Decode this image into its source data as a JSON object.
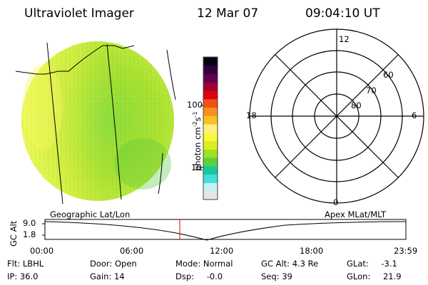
{
  "header": {
    "instrument": "Ultraviolet Imager",
    "date": "12 Mar 07",
    "time": "09:04:10 UT"
  },
  "colorbar": {
    "unit_label": "photon cm",
    "unit_exp1": "-2",
    "unit_s": "s",
    "unit_exp2": "-1",
    "tick_100": "100",
    "tick_10": "10",
    "colors": [
      "#e6e6e6",
      "#c8f0ee",
      "#40e0d8",
      "#18c8a0",
      "#58d040",
      "#a0e020",
      "#d8f020",
      "#f8f840",
      "#fff080",
      "#f8c020",
      "#f89020",
      "#f05010",
      "#e00010",
      "#a00030",
      "#600050",
      "#300040",
      "#080010"
    ]
  },
  "image_panel": {
    "caption": "Geographic Lat/Lon"
  },
  "polar_grid": {
    "caption": "Apex MLat/MLT",
    "mlt_12": "12",
    "mlt_18": "18",
    "mlt_6": "6",
    "mlt_0": "0",
    "lat_60": "60",
    "lat_70": "70",
    "lat_80": "80"
  },
  "orbit_plot": {
    "ylabel": "GC Alt",
    "y_top": "9.0",
    "y_bottom": "1.8",
    "x_labels": [
      "00:00",
      "06:00",
      "12:00",
      "18:00",
      "23:59"
    ],
    "marker_color": "#e00000"
  },
  "status": {
    "flt_label": "Flt:",
    "flt_value": "LBHL",
    "ip_label": "IP:",
    "ip_value": "36.0",
    "door_label": "Door:",
    "door_value": "Open",
    "gain_label": "Gain:",
    "gain_value": "14",
    "mode_label": "Mode:",
    "mode_value": "Normal",
    "dsp_label": "Dsp:",
    "dsp_value": "-0.0",
    "gcalt_label": "GC Alt:",
    "gcalt_value": "4.3 Re",
    "seq_label": "Seq:",
    "seq_value": "39",
    "glat_label": "GLat:",
    "glat_value": "-3.1",
    "glon_label": "GLon:",
    "glon_value": "21.9"
  }
}
